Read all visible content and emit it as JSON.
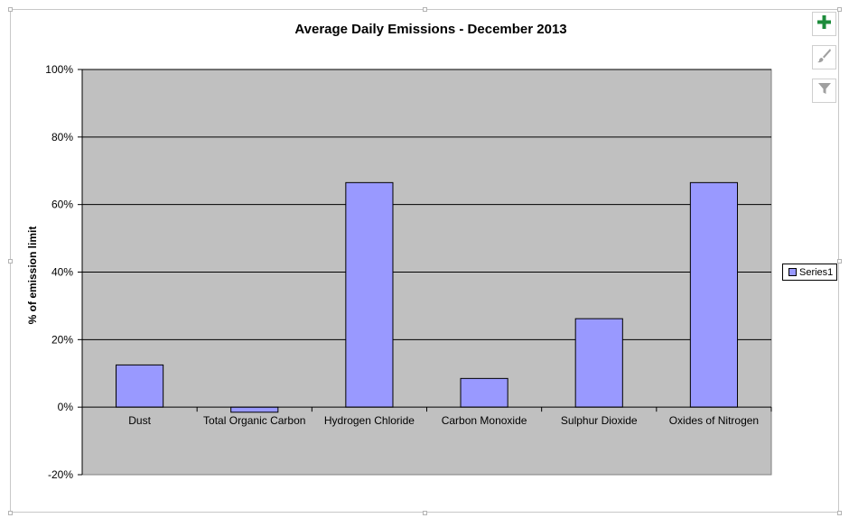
{
  "colors": {
    "plot_background": "#c0c0c0",
    "bar_fill": "#9999ff",
    "gridline": "#000000",
    "add_icon": "#1e8c3c",
    "muted_icon": "#a0a0a0"
  },
  "side_buttons": {
    "add": "chart-elements-plus-icon",
    "style": "chart-styles-brush-icon",
    "filter": "chart-filter-funnel-icon"
  },
  "chart_data": {
    "type": "bar",
    "title": "Average Daily Emissions - December 2013",
    "xlabel": "",
    "ylabel": "% of emission limit",
    "categories": [
      "Dust",
      "Total Organic Carbon",
      "Hydrogen Chloride",
      "Carbon Monoxide",
      "Sulphur Dioxide",
      "Oxides of Nitrogen"
    ],
    "series": [
      {
        "name": "Series1",
        "values": [
          12.5,
          -1.5,
          66.5,
          8.5,
          26.2,
          66.5
        ]
      }
    ],
    "ylim": [
      -20,
      100
    ],
    "yticks": [
      -20,
      0,
      20,
      40,
      60,
      80,
      100
    ],
    "ytick_labels": [
      "-20%",
      "0%",
      "20%",
      "40%",
      "60%",
      "80%",
      "100%"
    ],
    "grid": true,
    "legend_position": "right"
  }
}
